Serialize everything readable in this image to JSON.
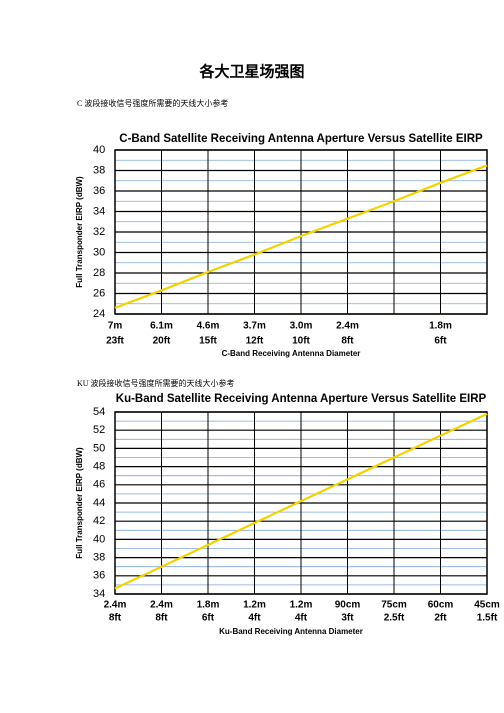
{
  "title": "各大卫星场强图",
  "captions": [
    "C 波段接收信号强度所需要的天线大小参考",
    "KU 波段接收信号强度所需要的天线大小参考"
  ],
  "chart_data": [
    {
      "type": "line",
      "title": "C-Band Satellite Receiving Antenna Aperture Versus Satellite EIRP",
      "x_label": "C-Band Receiving Antenna Diameter",
      "y_label": "Full Transponder EIRP (dBW)",
      "categories": [
        "7m",
        "6.1m",
        "4.6m",
        "3.7m",
        "3.0m",
        "2.4m",
        null,
        "1.8m",
        null
      ],
      "sublabels": [
        "23ft",
        "20ft",
        "15ft",
        "12ft",
        "10ft",
        "8ft",
        null,
        "6ft",
        null
      ],
      "series": [
        {
          "color": "#f2d300",
          "values": [
            24.6,
            26.3,
            28.1,
            29.8,
            31.6,
            33.3,
            35.0,
            36.8,
            38.5
          ]
        }
      ],
      "ylim": [
        24,
        40
      ],
      "yticks": [
        24,
        26,
        28,
        30,
        32,
        34,
        36,
        38,
        40
      ],
      "grid": true
    },
    {
      "type": "line",
      "title": "Ku-Band Satellite Receiving Antenna Aperture Versus Satellite EIRP",
      "x_label": "Ku-Band Receiving Antenna Diameter",
      "y_label": "Full Transponder EIRP (dBW)",
      "categories": [
        "2.4m",
        "2.4m",
        "1.8m",
        "1.2m",
        "1.2m",
        "90cm",
        "75cm",
        "60cm",
        "45cm"
      ],
      "sublabels": [
        "8ft",
        "8ft",
        "6ft",
        "4ft",
        "4ft",
        "3ft",
        "2.5ft",
        "2ft",
        "1.5ft"
      ],
      "series": [
        {
          "color": "#f2d300",
          "values": [
            34.6,
            37.0,
            39.4,
            41.8,
            44.2,
            46.6,
            49.0,
            51.4,
            53.8
          ]
        }
      ],
      "ylim": [
        34,
        54
      ],
      "yticks": [
        34,
        36,
        38,
        40,
        42,
        44,
        46,
        48,
        50,
        52,
        54
      ],
      "grid": true
    }
  ]
}
